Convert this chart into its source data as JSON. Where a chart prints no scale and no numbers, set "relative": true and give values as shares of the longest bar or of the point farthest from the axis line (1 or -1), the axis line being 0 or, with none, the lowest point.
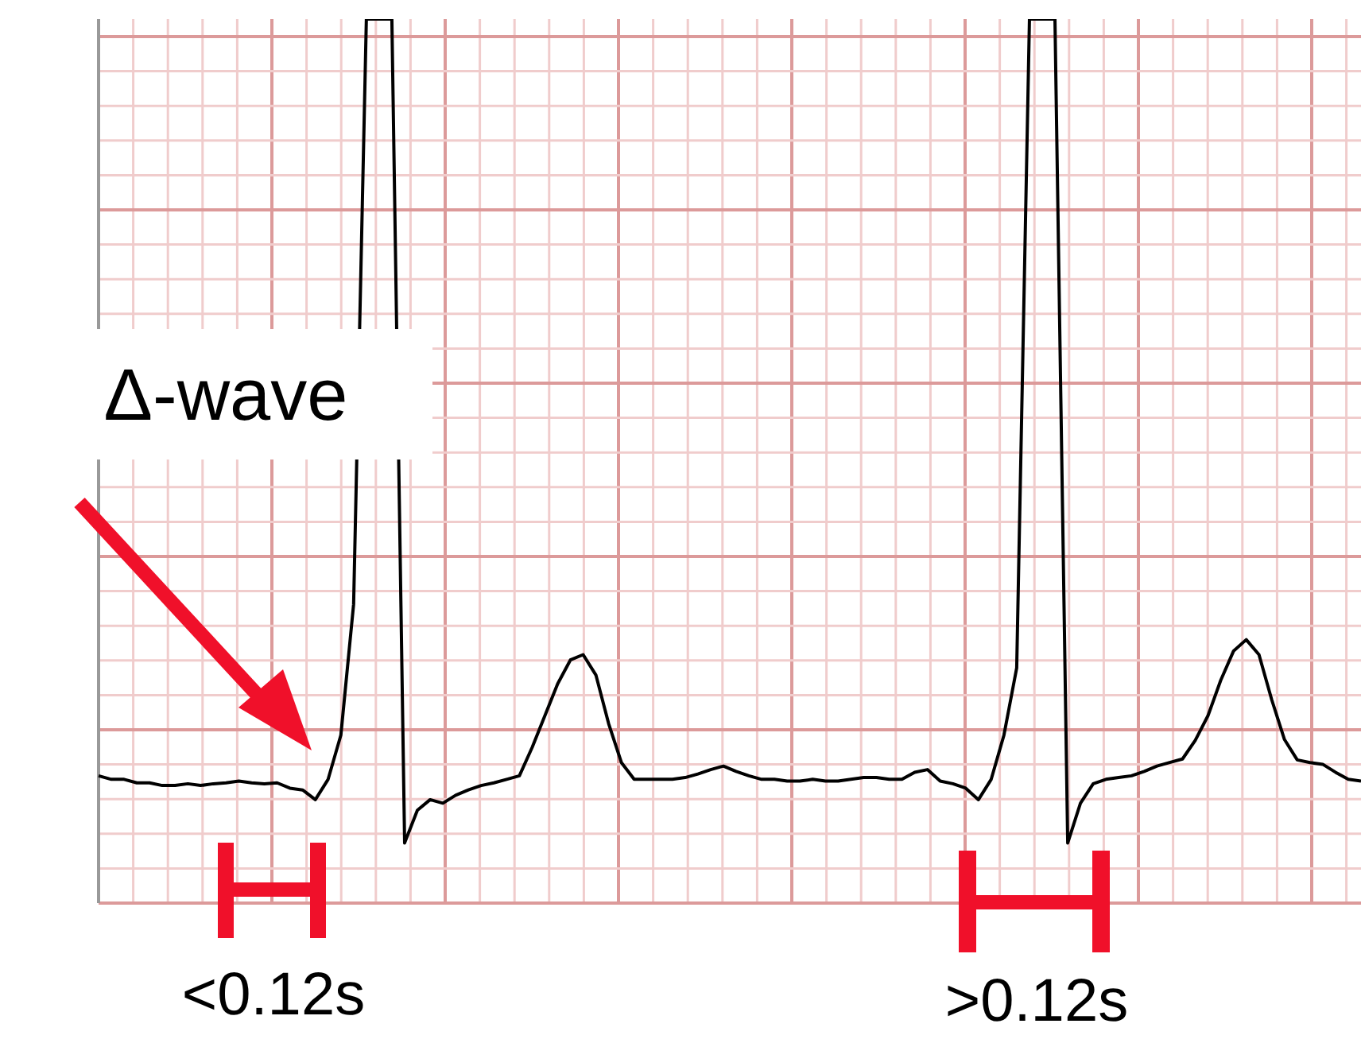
{
  "chart_data": {
    "type": "line",
    "relative": true,
    "grid": true,
    "legend": false,
    "marker": "none",
    "line_style": "solid",
    "categories": [
      null,
      null,
      null,
      null,
      null,
      null,
      null,
      null,
      null,
      null,
      null,
      null,
      null,
      null,
      null,
      null,
      null,
      null,
      null,
      null,
      null,
      null,
      null,
      null,
      null,
      null,
      null,
      null,
      null,
      null,
      null,
      null,
      null,
      null,
      null,
      null,
      null,
      null,
      null,
      null,
      null,
      null,
      null,
      null,
      null,
      null,
      null,
      null,
      null,
      null,
      null,
      null,
      null,
      null,
      null,
      null,
      null,
      null,
      null,
      null,
      null,
      null,
      null,
      null,
      null,
      null,
      null,
      null,
      null,
      null,
      null,
      null,
      null,
      null,
      null,
      null,
      null,
      null,
      null,
      null,
      null,
      null,
      null,
      null,
      null,
      null,
      null,
      null,
      null,
      null,
      null,
      null,
      null,
      null,
      null,
      null,
      null,
      null,
      null,
      null
    ],
    "series": [
      {
        "color": "#000000",
        "values": [
          0.144,
          0.14,
          0.14,
          0.136,
          0.136,
          0.133,
          0.133,
          0.135,
          0.133,
          0.135,
          0.136,
          0.138,
          0.136,
          0.135,
          0.136,
          0.13,
          0.128,
          0.117,
          0.14,
          0.19,
          0.338,
          1,
          1,
          1,
          0.068,
          0.105,
          0.117,
          0.113,
          0.122,
          0.128,
          0.133,
          0.136,
          0.14,
          0.144,
          0.176,
          0.212,
          0.248,
          0.275,
          0.281,
          0.258,
          0.203,
          0.159,
          0.14,
          0.14,
          0.14,
          0.14,
          0.142,
          0.146,
          0.151,
          0.155,
          0.149,
          0.144,
          0.14,
          0.14,
          0.138,
          0.138,
          0.14,
          0.138,
          0.138,
          0.14,
          0.142,
          0.142,
          0.14,
          0.14,
          0.148,
          0.151,
          0.138,
          0.135,
          0.13,
          0.117,
          0.14,
          0.19,
          0.266,
          1,
          1,
          1,
          0.068,
          0.113,
          0.135,
          0.14,
          0.142,
          0.144,
          0.149,
          0.155,
          0.159,
          0.163,
          0.184,
          0.212,
          0.252,
          0.285,
          0.298,
          0.281,
          0.23,
          0.185,
          0.162,
          0.159,
          0.157,
          0.148,
          0.14,
          0.138
        ]
      }
    ],
    "annotations": [
      "Δ-wave",
      "<0.12s",
      ">0.12s"
    ]
  }
}
